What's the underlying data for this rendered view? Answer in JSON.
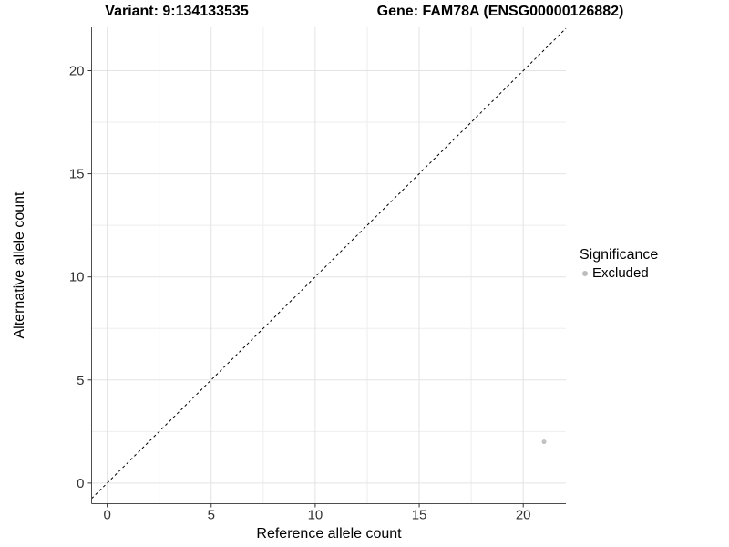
{
  "chart_data": {
    "type": "scatter",
    "title_left": "Variant: 9:134133535",
    "title_right": "Gene: FAM78A (ENSG00000126882)",
    "xlabel": "Reference allele count",
    "ylabel": "Alternative allele count",
    "xlim": [
      -0.75,
      22.05
    ],
    "ylim": [
      -1.0,
      22.1
    ],
    "xticks": [
      0,
      5,
      10,
      15,
      20
    ],
    "yticks": [
      0,
      5,
      10,
      15,
      20
    ],
    "minor_grid_start": 2.5,
    "minor_grid_step": 5,
    "grid": true,
    "legend_position": "right",
    "legend_title": "Significance",
    "series": [
      {
        "name": "Excluded",
        "color": "#c2c2c2",
        "points": [
          {
            "x": 21,
            "y": 2
          }
        ]
      }
    ],
    "reference_line": {
      "kind": "identity",
      "style": "dashed",
      "color": "#000000"
    },
    "colors": {
      "background": "#ffffff",
      "grid_major": "#e3e3e3",
      "grid_minor": "#eeeeee",
      "axis_line": "#4d4d4d",
      "tick_mark": "#333333",
      "tick_label": "#333333",
      "legend_dot": "#bdbdbd"
    }
  }
}
